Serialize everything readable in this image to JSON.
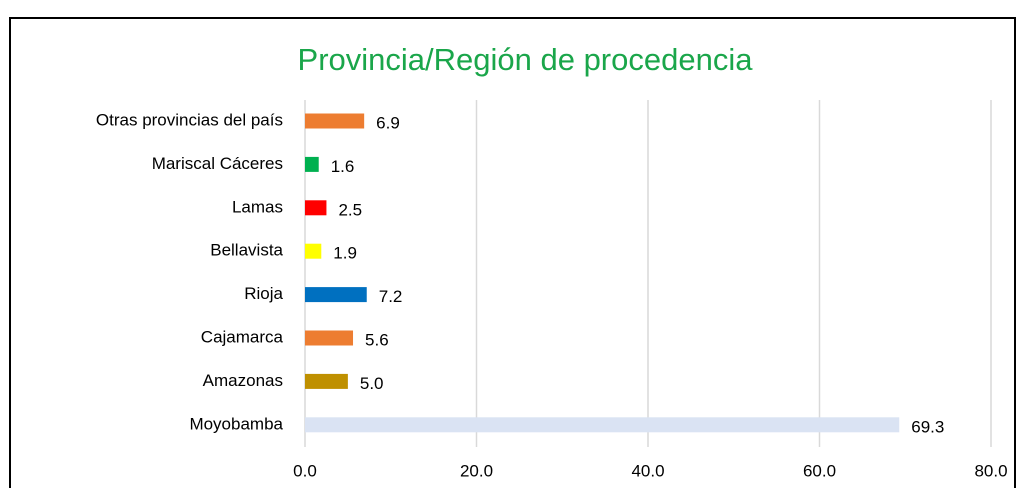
{
  "chart_data": {
    "type": "hbar",
    "title": "Provincia/Región de procedencia",
    "categories": [
      "Otras provincias del país",
      "Mariscal Cáceres",
      "Lamas",
      "Bellavista",
      "Rioja",
      "Cajamarca",
      "Amazonas",
      "Moyobamba"
    ],
    "values": [
      6.9,
      1.6,
      2.5,
      1.9,
      7.2,
      5.6,
      5.0,
      69.3
    ],
    "value_labels": [
      "6.9",
      "1.6",
      "2.5",
      "1.9",
      "7.2",
      "5.6",
      "5.0",
      "69.3"
    ],
    "colors": [
      "#ed7d31",
      "#00b050",
      "#ff0000",
      "#ffff00",
      "#0070c0",
      "#ed7d31",
      "#bf9000",
      "#dae3f3"
    ],
    "xlim": [
      0,
      80
    ],
    "xticks": [
      {
        "value": 0,
        "label": "0.0"
      },
      {
        "value": 20,
        "label": "20.0"
      },
      {
        "value": 40,
        "label": "40.0"
      },
      {
        "value": 60,
        "label": "60.0"
      },
      {
        "value": 80,
        "label": "80.0"
      }
    ],
    "grid": true
  }
}
